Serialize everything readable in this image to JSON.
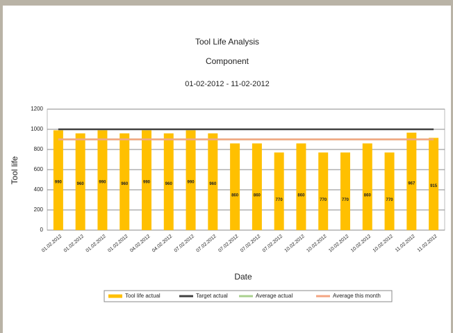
{
  "chart_data": {
    "type": "bar",
    "title": "Tool Life Analysis",
    "subtitle": "Component",
    "date_range": "01-02-2012 - 11-02-2012",
    "x_label": "Date",
    "y_label": "Tool life",
    "categories": [
      "01.02.2012",
      "01.02.2012",
      "01.02.2012",
      "01.02.2012",
      "04.02.2012",
      "04.02.2012",
      "07.02.2012",
      "07.02.2012",
      "07.02.2012",
      "07.02.2012",
      "07.02.2012",
      "10.02.2012",
      "10.02.2012",
      "10.02.2012",
      "10.02.2012",
      "10.02.2012",
      "11.02.2012",
      "11.02.2012"
    ],
    "series": [
      {
        "name": "Tool life actual",
        "color": "#ffc000",
        "kind": "bar",
        "values": [
          990,
          960,
          990,
          960,
          990,
          960,
          990,
          960,
          860,
          860,
          770,
          860,
          770,
          770,
          860,
          770,
          967,
          915
        ]
      },
      {
        "name": "Target actual",
        "color": "#404040",
        "kind": "line",
        "values": [
          1000,
          1000,
          1000,
          1000,
          1000,
          1000,
          1000,
          1000,
          1000,
          1000,
          1000,
          1000,
          1000,
          1000,
          1000,
          1000,
          1000,
          1000
        ]
      },
      {
        "name": "Average actual",
        "color": "#a9d08e",
        "kind": "line",
        "values": [
          900,
          900,
          900,
          900,
          900,
          900,
          900,
          900,
          900,
          900,
          900,
          900,
          900,
          900,
          900,
          900,
          900,
          900
        ]
      },
      {
        "name": "Average this month",
        "color": "#f4a582",
        "kind": "line",
        "values": [
          900,
          900,
          900,
          900,
          900,
          900,
          900,
          900,
          900,
          900,
          900,
          900,
          900,
          900,
          900,
          900,
          900,
          900
        ]
      }
    ],
    "ylim": [
      0,
      1200
    ],
    "yticks": [
      0,
      200,
      400,
      600,
      800,
      1000,
      1200
    ],
    "grid": true,
    "legend": "bottom"
  }
}
